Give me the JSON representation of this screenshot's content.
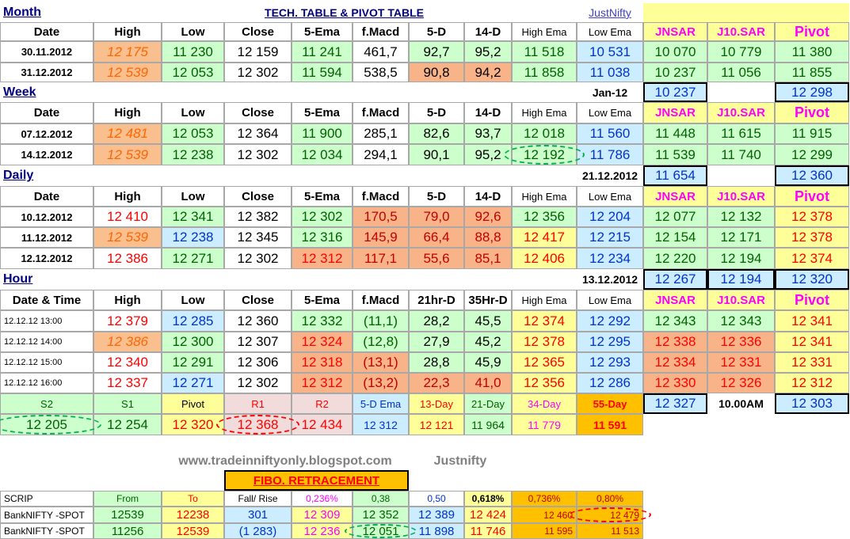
{
  "headers": {
    "month": "Month",
    "title": "TECH. TABLE  &  PIVOT TABLE",
    "justnifty_link": "JustNifty",
    "week": "Week",
    "daily": "Daily",
    "hour": "Hour"
  },
  "colors": {
    "peach": "#fabf8f",
    "green": "#ccffcc",
    "blue": "#ccecff",
    "yellow": "#ffff99",
    "rose": "#f2dcdb",
    "salmon": "#f8b488",
    "gold": "#ffc000",
    "orange": "#fcd5b4",
    "navy": "#000080",
    "red": "#ff0000",
    "darkgreen": "#006100",
    "magenta": "#ff00ff",
    "darkred": "#c00000",
    "mono_green": "#00b050"
  },
  "cols": {
    "std": [
      "Date",
      "High",
      "Low",
      "Close",
      "5-Ema",
      "f.Macd",
      "5-D",
      "14-D",
      "High Ema",
      "Low Ema",
      "JNSAR",
      "J10.SAR",
      "Pivot"
    ],
    "hour": [
      "Date & Time",
      "High",
      "Low",
      "Close",
      "5-Ema",
      "f.Macd",
      "21hr-D",
      "35Hr-D",
      "High Ema",
      "Low Ema",
      "JNSAR",
      "J10.SAR",
      "Pivot"
    ]
  },
  "month_rows": [
    [
      "30.11.2012",
      "12 175",
      "11 230",
      "12 159",
      "11 241",
      "461,7",
      "92,7",
      "95,2",
      "11 518",
      "10 531",
      "10 070",
      "10 779",
      "11 380"
    ],
    [
      "31.12.2012",
      "12 539",
      "12 053",
      "12 302",
      "11 594",
      "538,5",
      "90,8",
      "94,2",
      "11 858",
      "11 038",
      "10 237",
      "11 056",
      "11 855"
    ]
  ],
  "month_pivot": {
    "date": "Jan-12",
    "jnsar": "10 237",
    "pivot": "12 298"
  },
  "week_rows": [
    [
      "07.12.2012",
      "12 481",
      "12 053",
      "12 364",
      "11 900",
      "285,1",
      "82,6",
      "93,7",
      "12 018",
      "11 560",
      "11 448",
      "11 615",
      "11 915"
    ],
    [
      "14.12.2012",
      "12 539",
      "12 238",
      "12 302",
      "12 034",
      "294,1",
      "90,1",
      "95,2",
      "12 192",
      "11 786",
      "11 539",
      "11 740",
      "12 299"
    ]
  ],
  "week_pivot": {
    "date": "21.12.2012",
    "jnsar": "11 654",
    "pivot": "12 360"
  },
  "daily_rows": [
    [
      "10.12.2012",
      "12 410",
      "12 341",
      "12 382",
      "12 302",
      "170,5",
      "79,0",
      "92,6",
      "12 356",
      "12 204",
      "12 077",
      "12 132",
      "12 378"
    ],
    [
      "11.12.2012",
      "12 539",
      "12 238",
      "12 345",
      "12 316",
      "145,9",
      "66,4",
      "88,8",
      "12 417",
      "12 215",
      "12 154",
      "12 171",
      "12 378"
    ],
    [
      "12.12.2012",
      "12 386",
      "12 271",
      "12 302",
      "12 312",
      "117,1",
      "55,6",
      "85,1",
      "12 406",
      "12 234",
      "12 220",
      "12 194",
      "12 374"
    ]
  ],
  "daily_pivot": {
    "date": "13.12.2012",
    "jnsar": "12 267",
    "j10sar": "12 194",
    "pivot": "12 320"
  },
  "hour_rows": [
    [
      "12.12.12 13:00",
      "12 379",
      "12 285",
      "12 360",
      "12 332",
      "(11,1)",
      "28,2",
      "45,5",
      "12 374",
      "12 292",
      "12 343",
      "12 343",
      "12 341"
    ],
    [
      "12.12.12 14:00",
      "12 386",
      "12 300",
      "12 307",
      "12 324",
      "(12,8)",
      "27,9",
      "45,2",
      "12 378",
      "12 295",
      "12 338",
      "12 336",
      "12 341"
    ],
    [
      "12.12.12 15:00",
      "12 340",
      "12 291",
      "12 306",
      "12 318",
      "(13,1)",
      "28,8",
      "45,9",
      "12 365",
      "12 293",
      "12 334",
      "12 331",
      "12 331"
    ],
    [
      "12.12.12 16:00",
      "12 337",
      "12 271",
      "12 302",
      "12 312",
      "(13,2)",
      "22,3",
      "41,0",
      "12 356",
      "12 286",
      "12 330",
      "12 326",
      "12 312"
    ]
  ],
  "levels_labels": [
    "S2",
    "S1",
    "Pivot",
    "R1",
    "R2",
    "5-D Ema",
    "13-Day",
    "21-Day",
    "34-Day",
    "55-Day"
  ],
  "levels_values": [
    "12 205",
    "12 254",
    "12 320",
    "12 368",
    "12 434",
    "12 312",
    "12 121",
    "11 964",
    "11 779",
    "11 591"
  ],
  "hour_pivot": {
    "jnsar": "12 327",
    "time": "10.00AM",
    "pivot": "12 303"
  },
  "footer": {
    "url": "www.tradeinniftyonly.blogspot.com",
    "brand": "Justnifty",
    "fibo_title": "FIBO. RETRACEMENT"
  },
  "fibo_header": [
    "SCRIP",
    "From",
    "To",
    "Fall/ Rise",
    "0,236%",
    "0,38",
    "0,50",
    "0,618%",
    "0,736%",
    "0,80%"
  ],
  "fibo_rows": [
    [
      "BankNIFTY -SPOT",
      "12539",
      "12238",
      "301",
      "12 309",
      "12 352",
      "12 389",
      "12 424",
      "12 460",
      "12 479"
    ],
    [
      "BankNIFTY -SPOT",
      "11256",
      "12539",
      "(1 283)",
      "12 236",
      "12 051",
      "11 898",
      "11 746",
      "11 595",
      "11 513"
    ]
  ]
}
